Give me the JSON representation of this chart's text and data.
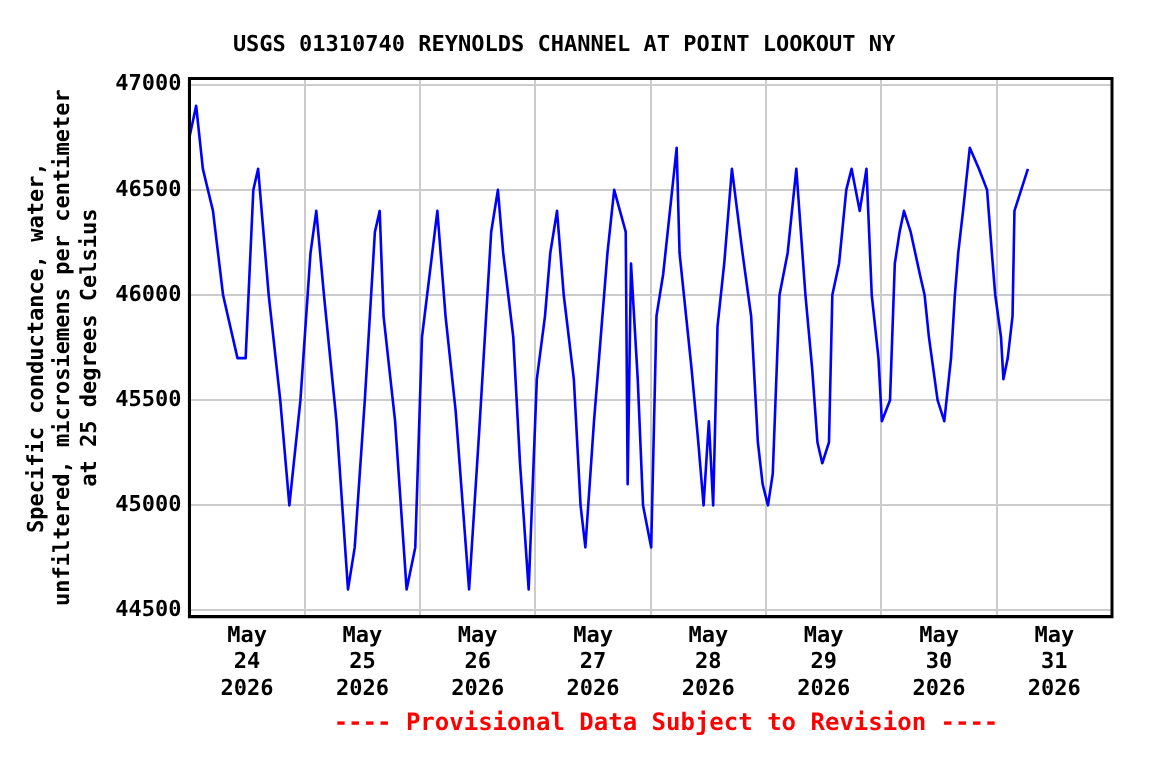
{
  "chart_data": {
    "type": "line",
    "title": "USGS 01310740 REYNOLDS CHANNEL AT POINT LOOKOUT NY",
    "ylabel": "Specific conductance, water,\nunfiltered, microsiemens per centimeter\nat 25 degrees Celsius",
    "annotations": [
      "---- Provisional Data Subject to Revision ----"
    ],
    "xlim": [
      "2026-05-24T00:00",
      "2026-06-01T00:00"
    ],
    "xticks": [
      {
        "value": "2026-05-24T12:00",
        "label": "May\n24\n2026"
      },
      {
        "value": "2026-05-25T00:00",
        "label": null
      },
      {
        "value": "2026-05-25T12:00",
        "label": "May\n25\n2026"
      },
      {
        "value": "2026-05-26T00:00",
        "label": null
      },
      {
        "value": "2026-05-26T12:00",
        "label": "May\n26\n2026"
      },
      {
        "value": "2026-05-27T00:00",
        "label": null
      },
      {
        "value": "2026-05-27T12:00",
        "label": "May\n27\n2026"
      },
      {
        "value": "2026-05-28T00:00",
        "label": null
      },
      {
        "value": "2026-05-28T12:00",
        "label": "May\n28\n2026"
      },
      {
        "value": "2026-05-29T00:00",
        "label": null
      },
      {
        "value": "2026-05-29T12:00",
        "label": "May\n29\n2026"
      },
      {
        "value": "2026-05-30T00:00",
        "label": null
      },
      {
        "value": "2026-05-30T12:00",
        "label": "May\n30\n2026"
      },
      {
        "value": "2026-05-31T00:00",
        "label": null
      },
      {
        "value": "2026-05-31T12:00",
        "label": "May\n31\n2026"
      }
    ],
    "ylim": [
      44470,
      47030
    ],
    "yticks": [
      44500,
      45000,
      45500,
      46000,
      46500,
      47000
    ],
    "grid": true,
    "legend": false,
    "marker": "none",
    "line_style": "solid",
    "series": [
      {
        "color": "#0000ff",
        "x": [
          "2026-05-24T00:00",
          "2026-05-24T01:24",
          "2026-05-24T02:48",
          "2026-05-24T04:54",
          "2026-05-24T07:00",
          "2026-05-24T10:00",
          "2026-05-24T11:42",
          "2026-05-24T13:18",
          "2026-05-24T14:18",
          "2026-05-24T16:30",
          "2026-05-24T18:54",
          "2026-05-24T20:48",
          "2026-05-24T23:06",
          "2026-05-25T01:12",
          "2026-05-25T02:24",
          "2026-05-25T04:00",
          "2026-05-25T06:36",
          "2026-05-25T09:00",
          "2026-05-25T10:24",
          "2026-05-25T12:30",
          "2026-05-25T14:36",
          "2026-05-25T15:36",
          "2026-05-25T16:24",
          "2026-05-25T18:48",
          "2026-05-25T21:12",
          "2026-05-25T23:00",
          "2026-05-26T00:24",
          "2026-05-26T03:36",
          "2026-05-26T05:18",
          "2026-05-26T07:24",
          "2026-05-26T10:12",
          "2026-05-26T12:18",
          "2026-05-26T14:48",
          "2026-05-26T16:12",
          "2026-05-26T17:18",
          "2026-05-26T19:24",
          "2026-05-26T20:48",
          "2026-05-26T22:36",
          "2026-05-27T00:18",
          "2026-05-27T02:00",
          "2026-05-27T03:06",
          "2026-05-27T04:30",
          "2026-05-27T05:54",
          "2026-05-27T08:00",
          "2026-05-27T09:24",
          "2026-05-27T10:24",
          "2026-05-27T12:12",
          "2026-05-27T13:36",
          "2026-05-27T15:00",
          "2026-05-27T16:24",
          "2026-05-27T18:48",
          "2026-05-27T19:12",
          "2026-05-27T19:54",
          "2026-05-27T21:18",
          "2026-05-27T22:24",
          "2026-05-28T00:06",
          "2026-05-28T01:12",
          "2026-05-28T02:36",
          "2026-05-28T04:00",
          "2026-05-28T05:24",
          "2026-05-28T06:00",
          "2026-05-28T08:30",
          "2026-05-28T09:54",
          "2026-05-28T11:00",
          "2026-05-28T12:06",
          "2026-05-28T13:00",
          "2026-05-28T13:54",
          "2026-05-28T15:18",
          "2026-05-28T16:54",
          "2026-05-28T19:06",
          "2026-05-28T20:54",
          "2026-05-28T22:18",
          "2026-05-28T23:18",
          "2026-05-29T00:24",
          "2026-05-29T01:24",
          "2026-05-29T02:48",
          "2026-05-29T04:30",
          "2026-05-29T06:18",
          "2026-05-29T08:12",
          "2026-05-29T09:36",
          "2026-05-29T10:42",
          "2026-05-29T11:42",
          "2026-05-29T13:06",
          "2026-05-29T13:48",
          "2026-05-29T15:12",
          "2026-05-29T16:42",
          "2026-05-29T17:48",
          "2026-05-29T19:30",
          "2026-05-29T20:54",
          "2026-05-29T22:00",
          "2026-05-29T23:24",
          "2026-05-30T00:06",
          "2026-05-30T01:48",
          "2026-05-30T02:48",
          "2026-05-30T03:48",
          "2026-05-30T04:42",
          "2026-05-30T06:06",
          "2026-05-30T08:00",
          "2026-05-30T09:00",
          "2026-05-30T09:54",
          "2026-05-30T11:42",
          "2026-05-30T13:06",
          "2026-05-30T14:30",
          "2026-05-30T15:18",
          "2026-05-30T16:00",
          "2026-05-30T17:00",
          "2026-05-30T18:24",
          "2026-05-30T20:18",
          "2026-05-30T22:00",
          "2026-05-30T23:00",
          "2026-05-30T23:42",
          "2026-05-31T00:54",
          "2026-05-31T01:24",
          "2026-05-31T02:18",
          "2026-05-31T03:18",
          "2026-05-31T03:42",
          "2026-05-31T05:06",
          "2026-05-31T06:30"
        ],
        "values": [
          46750,
          46900,
          46600,
          46400,
          46000,
          45700,
          45700,
          46500,
          46600,
          46000,
          45500,
          45000,
          45500,
          46200,
          46400,
          46000,
          45400,
          44600,
          44800,
          45500,
          46300,
          46400,
          45900,
          45400,
          44600,
          44800,
          45800,
          46400,
          45900,
          45450,
          44600,
          45350,
          46300,
          46500,
          46200,
          45800,
          45200,
          44600,
          45600,
          45900,
          46200,
          46400,
          46000,
          45600,
          45000,
          44800,
          45400,
          45800,
          46200,
          46500,
          46300,
          45100,
          46150,
          45600,
          45000,
          44800,
          45900,
          46100,
          46400,
          46700,
          46200,
          45650,
          45300,
          45000,
          45400,
          45000,
          45850,
          46150,
          46600,
          46200,
          45900,
          45300,
          45100,
          45000,
          45150,
          46000,
          46200,
          46600,
          46000,
          45650,
          45300,
          45200,
          45300,
          46000,
          46150,
          46500,
          46600,
          46400,
          46600,
          46000,
          45700,
          45400,
          45500,
          46150,
          46300,
          46400,
          46300,
          46100,
          46000,
          45800,
          45500,
          45400,
          45700,
          46000,
          46200,
          46400,
          46700,
          46600,
          46500,
          46200,
          46000,
          45800,
          45600,
          45700,
          45900,
          46400,
          46500,
          46600
        ]
      }
    ]
  }
}
